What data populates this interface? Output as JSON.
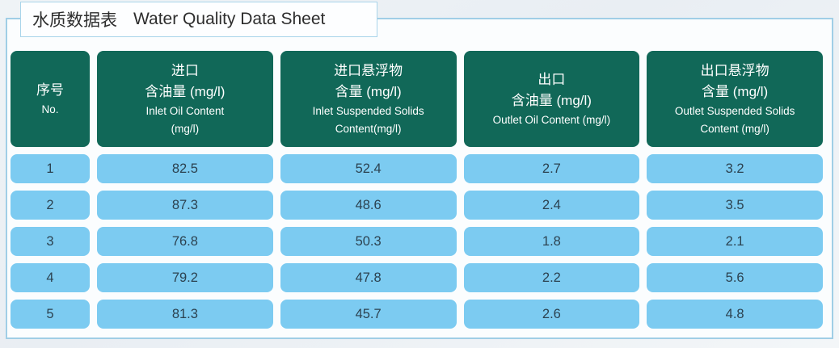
{
  "title": {
    "zh": "水质数据表",
    "en": "Water Quality Data Sheet"
  },
  "table": {
    "headers": [
      {
        "zh": [
          "序号"
        ],
        "en": [
          "No."
        ]
      },
      {
        "zh": [
          "进口",
          "含油量 (mg/l)"
        ],
        "en": [
          "Inlet Oil Content",
          "(mg/l)"
        ]
      },
      {
        "zh": [
          "进口悬浮物",
          "含量 (mg/l)"
        ],
        "en": [
          "Inlet Suspended Solids",
          "Content(mg/l)"
        ]
      },
      {
        "zh": [
          "出口",
          "含油量 (mg/l)"
        ],
        "en": [
          "Outlet Oil Content (mg/l)"
        ]
      },
      {
        "zh": [
          "出口悬浮物",
          "含量 (mg/l)"
        ],
        "en": [
          "Outlet Suspended Solids",
          "Content (mg/l)"
        ]
      }
    ],
    "rows": [
      [
        "1",
        "82.5",
        "52.4",
        "2.7",
        "3.2"
      ],
      [
        "2",
        "87.3",
        "48.6",
        "2.4",
        "3.5"
      ],
      [
        "3",
        "76.8",
        "50.3",
        "1.8",
        "2.1"
      ],
      [
        "4",
        "79.2",
        "47.8",
        "2.2",
        "5.6"
      ],
      [
        "5",
        "81.3",
        "45.7",
        "2.6",
        "4.8"
      ]
    ]
  },
  "colors": {
    "header_bg": "#116858",
    "cell_bg": "#7ccbf1",
    "panel_border": "#a0cee6",
    "header_text": "#ffffff",
    "cell_text": "#2c4250"
  }
}
